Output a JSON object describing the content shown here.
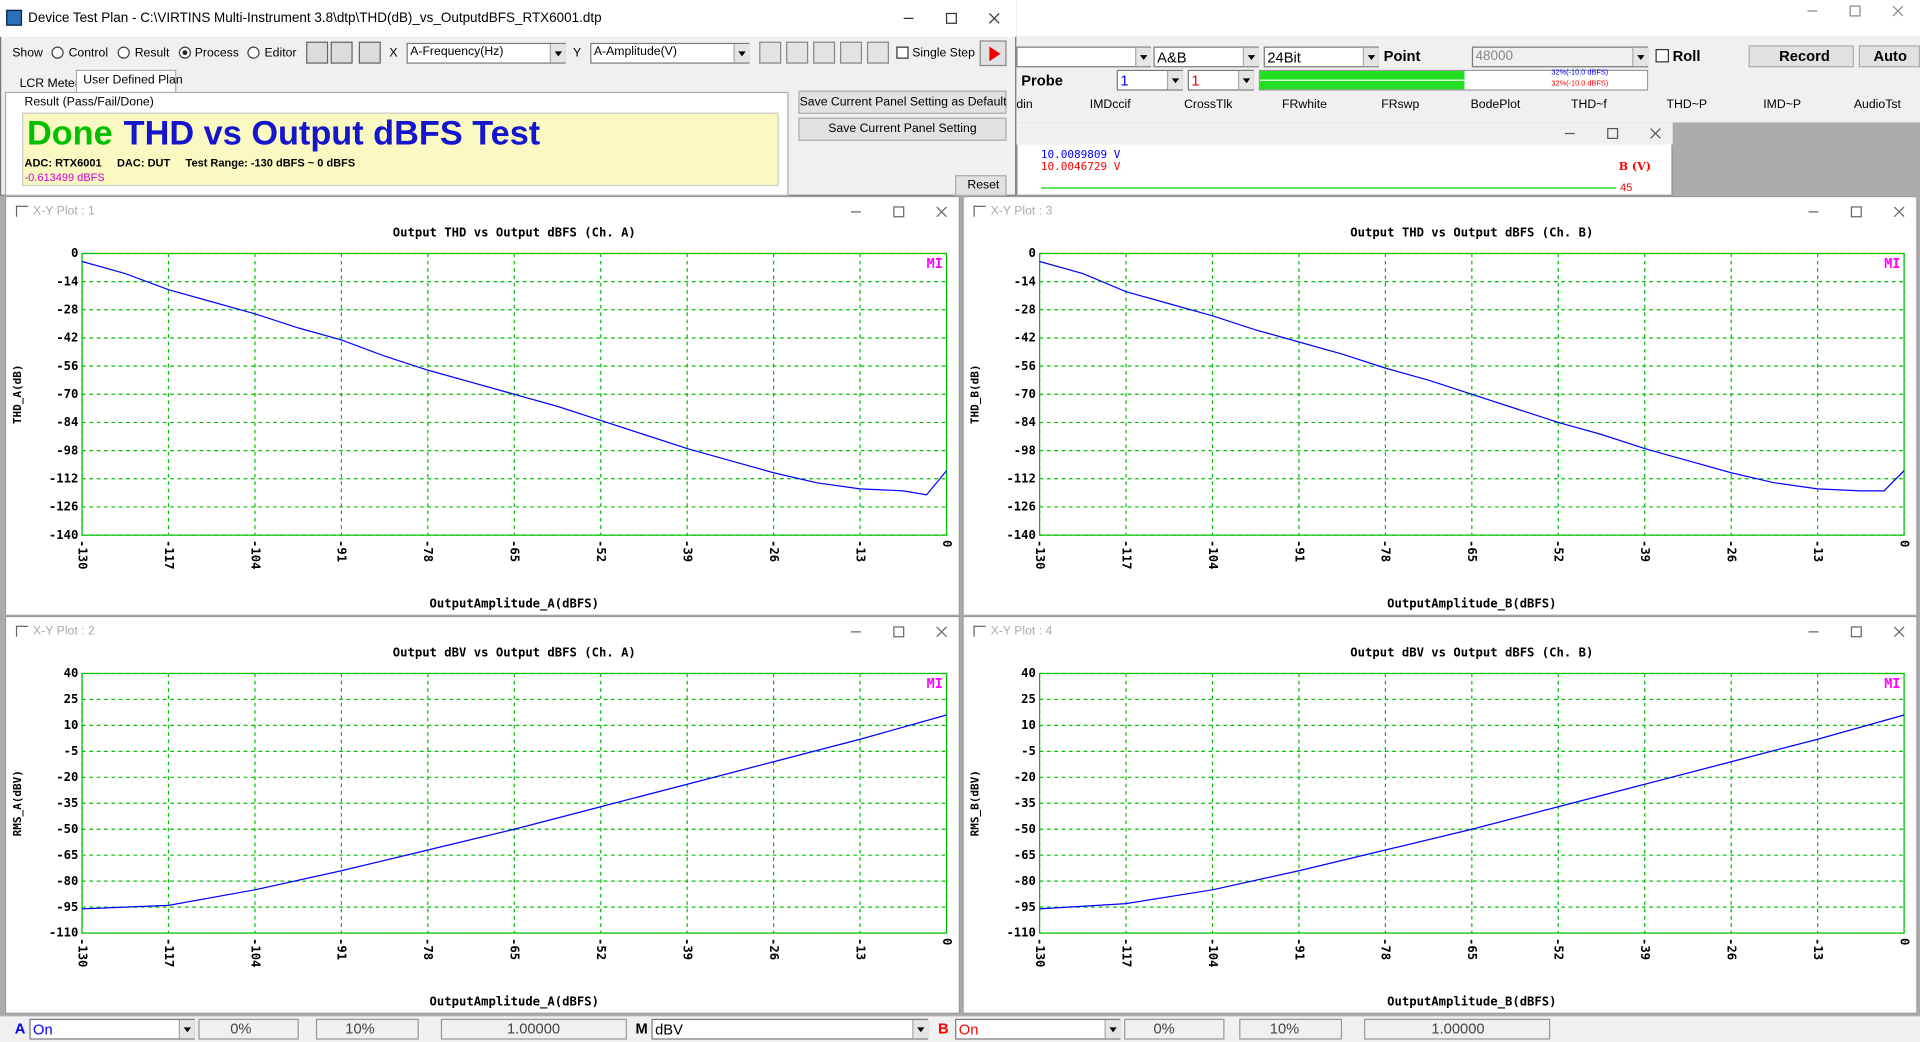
{
  "dialog": {
    "title": "Device Test Plan - C:\\VIRTINS Multi-Instrument 3.8\\dtp\\THD(dB)_vs_OutputdBFS_RTX6001.dtp",
    "show_label": "Show",
    "options": [
      "Control",
      "Result",
      "Process",
      "Editor"
    ],
    "x_label": "X",
    "x_select": "A-Frequency(Hz)",
    "y_label": "Y",
    "y_select": "A-Amplitude(V)",
    "single_step": "Single Step",
    "tabs": [
      "LCR Meter",
      "User Defined Plan"
    ],
    "result_label": "Result (Pass/Fail/Done)",
    "status": "Done",
    "test_name": "THD vs Output dBFS Test",
    "details": "ADC: RTX6001     DAC: DUT     Test Range: -130 dBFS ~ 0 dBFS",
    "level": "-0.613499 dBFS",
    "buttons": [
      "Save Current Panel Setting as Default",
      "Save Current Panel Setting"
    ],
    "reset": "Reset"
  },
  "main_toolbar": {
    "channel_mode": "A&B",
    "bits": "24Bit",
    "point_label": "Point",
    "point_value": "48000",
    "roll": "Roll",
    "record": "Record",
    "auto": "Auto",
    "probe": "Probe",
    "probe_a": "1",
    "probe_b": "1",
    "meter_a": "32%(-10.0 dBFS)",
    "meter_b": "32%(-10.0 dBFS)",
    "tabs": [
      "din",
      "IMDccif",
      "CrossTlk",
      "FRwhite",
      "FRswp",
      "BodePlot",
      "THD~f",
      "THD~P",
      "IMD~P",
      "AudioTst"
    ]
  },
  "readout": {
    "line_a": "10.0089809  V",
    "line_b": "10.0046729  V",
    "axis_label": "B (V)",
    "axis_value": "45"
  },
  "bottom_bar": {
    "a_label": "A",
    "a_state": "On",
    "a_offset": "0%",
    "a_range": "10%",
    "a_scale": "1.00000",
    "m_label": "M",
    "m_unit": "dBV",
    "b_label": "B",
    "b_state": "On",
    "b_offset": "0%",
    "b_range": "10%",
    "b_scale": "1.00000"
  },
  "chart_data": [
    {
      "type": "line",
      "window_title": "X-Y Plot : 1",
      "title": "Output THD vs Output dBFS (Ch. A)",
      "x_label": "OutputAmplitude_A(dBFS)",
      "y_label": "THD_A(dB)",
      "legend_text": "MI",
      "color": "#0000ff",
      "grid": true,
      "x": [
        -130,
        -123.5,
        -117,
        -110.5,
        -104,
        -97.5,
        -91,
        -84.5,
        -78,
        -71.5,
        -65,
        -58.5,
        -52,
        -45.5,
        -39,
        -32.5,
        -26,
        -19.5,
        -13,
        -6.5,
        -3,
        0
      ],
      "values": [
        -4,
        -10,
        -18,
        -24,
        -30,
        -37,
        -43,
        -51,
        -58,
        -64,
        -70,
        -76,
        -83,
        -90,
        -97,
        -103,
        -109,
        -114,
        -117,
        -118,
        -120,
        -108
      ],
      "xlim": [
        -130,
        0
      ],
      "xticks": [
        -130,
        -117,
        -104,
        -91,
        -78,
        -65,
        -52,
        -39,
        -26,
        -13,
        0
      ],
      "ylim": [
        -140,
        0
      ],
      "yticks": [
        0,
        -14,
        -28,
        -42,
        -56,
        -70,
        -84,
        -98,
        -112,
        -126,
        -140
      ]
    },
    {
      "type": "line",
      "window_title": "X-Y Plot : 3",
      "title": "Output THD vs Output dBFS (Ch. B)",
      "x_label": "OutputAmplitude_B(dBFS)",
      "y_label": "THD_B(dB)",
      "legend_text": "MI",
      "color": "#0000ff",
      "grid": true,
      "x": [
        -130,
        -123.5,
        -117,
        -110.5,
        -104,
        -97.5,
        -91,
        -84.5,
        -78,
        -71.5,
        -65,
        -58.5,
        -52,
        -45.5,
        -39,
        -32.5,
        -26,
        -19.5,
        -13,
        -6.5,
        -3,
        0
      ],
      "values": [
        -4,
        -10,
        -19,
        -25,
        -31,
        -38,
        -44,
        -50,
        -57,
        -63,
        -70,
        -77,
        -84,
        -90,
        -97,
        -103,
        -109,
        -114,
        -117,
        -118,
        -118,
        -108
      ],
      "xlim": [
        -130,
        0
      ],
      "xticks": [
        -130,
        -117,
        -104,
        -91,
        -78,
        -65,
        -52,
        -39,
        -26,
        -13,
        0
      ],
      "ylim": [
        -140,
        0
      ],
      "yticks": [
        0,
        -14,
        -28,
        -42,
        -56,
        -70,
        -84,
        -98,
        -112,
        -126,
        -140
      ]
    },
    {
      "type": "line",
      "window_title": "X-Y Plot : 2",
      "title": "Output dBV vs Output dBFS (Ch. A)",
      "x_label": "OutputAmplitude_A(dBFS)",
      "y_label": "RMS_A(dBV)",
      "legend_text": "MI",
      "color": "#0000ff",
      "grid": true,
      "x": [
        -130,
        -117,
        -104,
        -91,
        -78,
        -65,
        -52,
        -39,
        -26,
        -13,
        0
      ],
      "values": [
        -96,
        -94,
        -85,
        -74,
        -62,
        -50,
        -37,
        -24,
        -11,
        2,
        16
      ],
      "xlim": [
        -130,
        0
      ],
      "xticks": [
        -130,
        -117,
        -104,
        -91,
        -78,
        -65,
        -52,
        -39,
        -26,
        -13,
        0
      ],
      "ylim": [
        -110,
        40
      ],
      "yticks": [
        40,
        25,
        10,
        -5,
        -20,
        -35,
        -50,
        -65,
        -80,
        -95,
        -110
      ]
    },
    {
      "type": "line",
      "window_title": "X-Y Plot : 4",
      "title": "Output dBV vs Output dBFS (Ch. B)",
      "x_label": "OutputAmplitude_B(dBFS)",
      "y_label": "RMS_B(dBV)",
      "legend_text": "MI",
      "color": "#0000ff",
      "grid": true,
      "x": [
        -130,
        -117,
        -104,
        -91,
        -78,
        -65,
        -52,
        -39,
        -26,
        -13,
        0
      ],
      "values": [
        -96,
        -93,
        -85,
        -74,
        -62,
        -50,
        -37,
        -24,
        -11,
        2,
        16
      ],
      "xlim": [
        -130,
        0
      ],
      "xticks": [
        -130,
        -117,
        -104,
        -91,
        -78,
        -65,
        -52,
        -39,
        -26,
        -13,
        0
      ],
      "ylim": [
        -110,
        40
      ],
      "yticks": [
        40,
        25,
        10,
        -5,
        -20,
        -35,
        -50,
        -65,
        -80,
        -95,
        -110
      ]
    }
  ]
}
